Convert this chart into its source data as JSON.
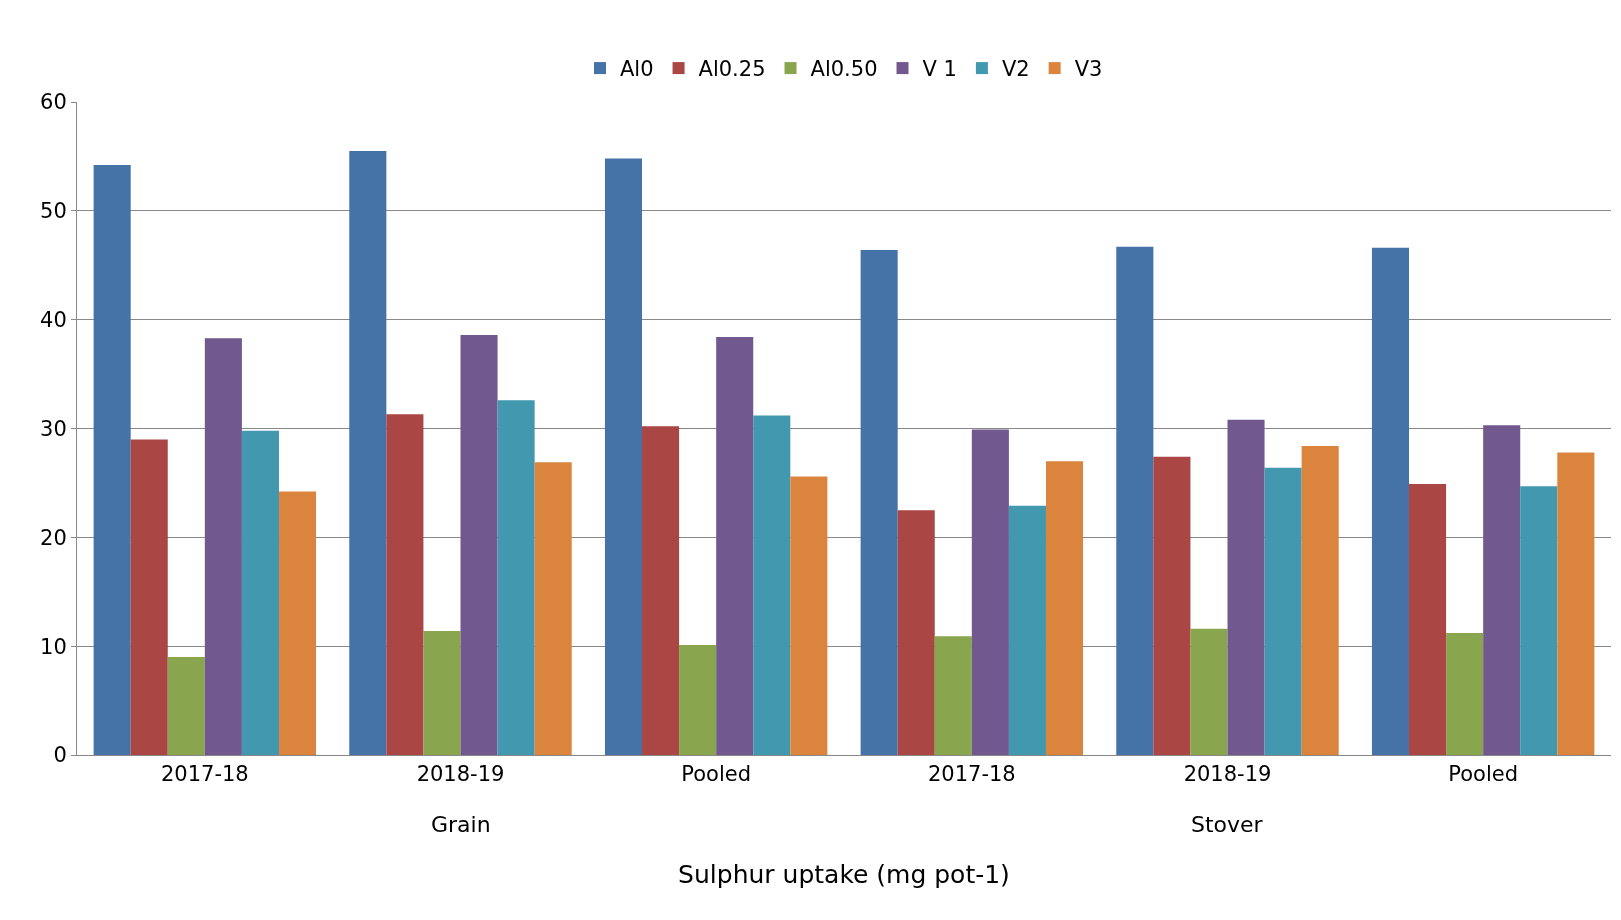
{
  "chart_data": {
    "type": "bar",
    "xlabel": "Sulphur uptake (mg pot-1)",
    "categories": [
      "2017-18",
      "2018-19",
      "Pooled",
      "2017-18",
      "2018-19",
      "Pooled"
    ],
    "annotations": [
      "Grain",
      "Stover"
    ],
    "series": [
      {
        "name": "Al0",
        "color": "#4572a7",
        "values": [
          54.2,
          55.5,
          54.8,
          46.4,
          46.7,
          46.6
        ]
      },
      {
        "name": "Al0.25",
        "color": "#aa4643",
        "values": [
          29.0,
          31.3,
          30.2,
          22.5,
          27.4,
          24.9
        ]
      },
      {
        "name": "Al0.50",
        "color": "#89a54e",
        "values": [
          9.0,
          11.4,
          10.1,
          10.9,
          11.6,
          11.2
        ]
      },
      {
        "name": "V 1",
        "color": "#71588f",
        "values": [
          38.3,
          38.6,
          38.4,
          29.9,
          30.8,
          30.3
        ]
      },
      {
        "name": "V2",
        "color": "#4198af",
        "values": [
          29.8,
          32.6,
          31.2,
          22.9,
          26.4,
          24.7
        ]
      },
      {
        "name": "V3",
        "color": "#db843d",
        "values": [
          24.2,
          26.9,
          25.6,
          27.0,
          28.4,
          27.8
        ]
      }
    ],
    "ylim": [
      0,
      60
    ],
    "yticks": [
      0,
      10,
      20,
      30,
      40,
      50,
      60
    ],
    "grid": "y",
    "legend": "top"
  }
}
